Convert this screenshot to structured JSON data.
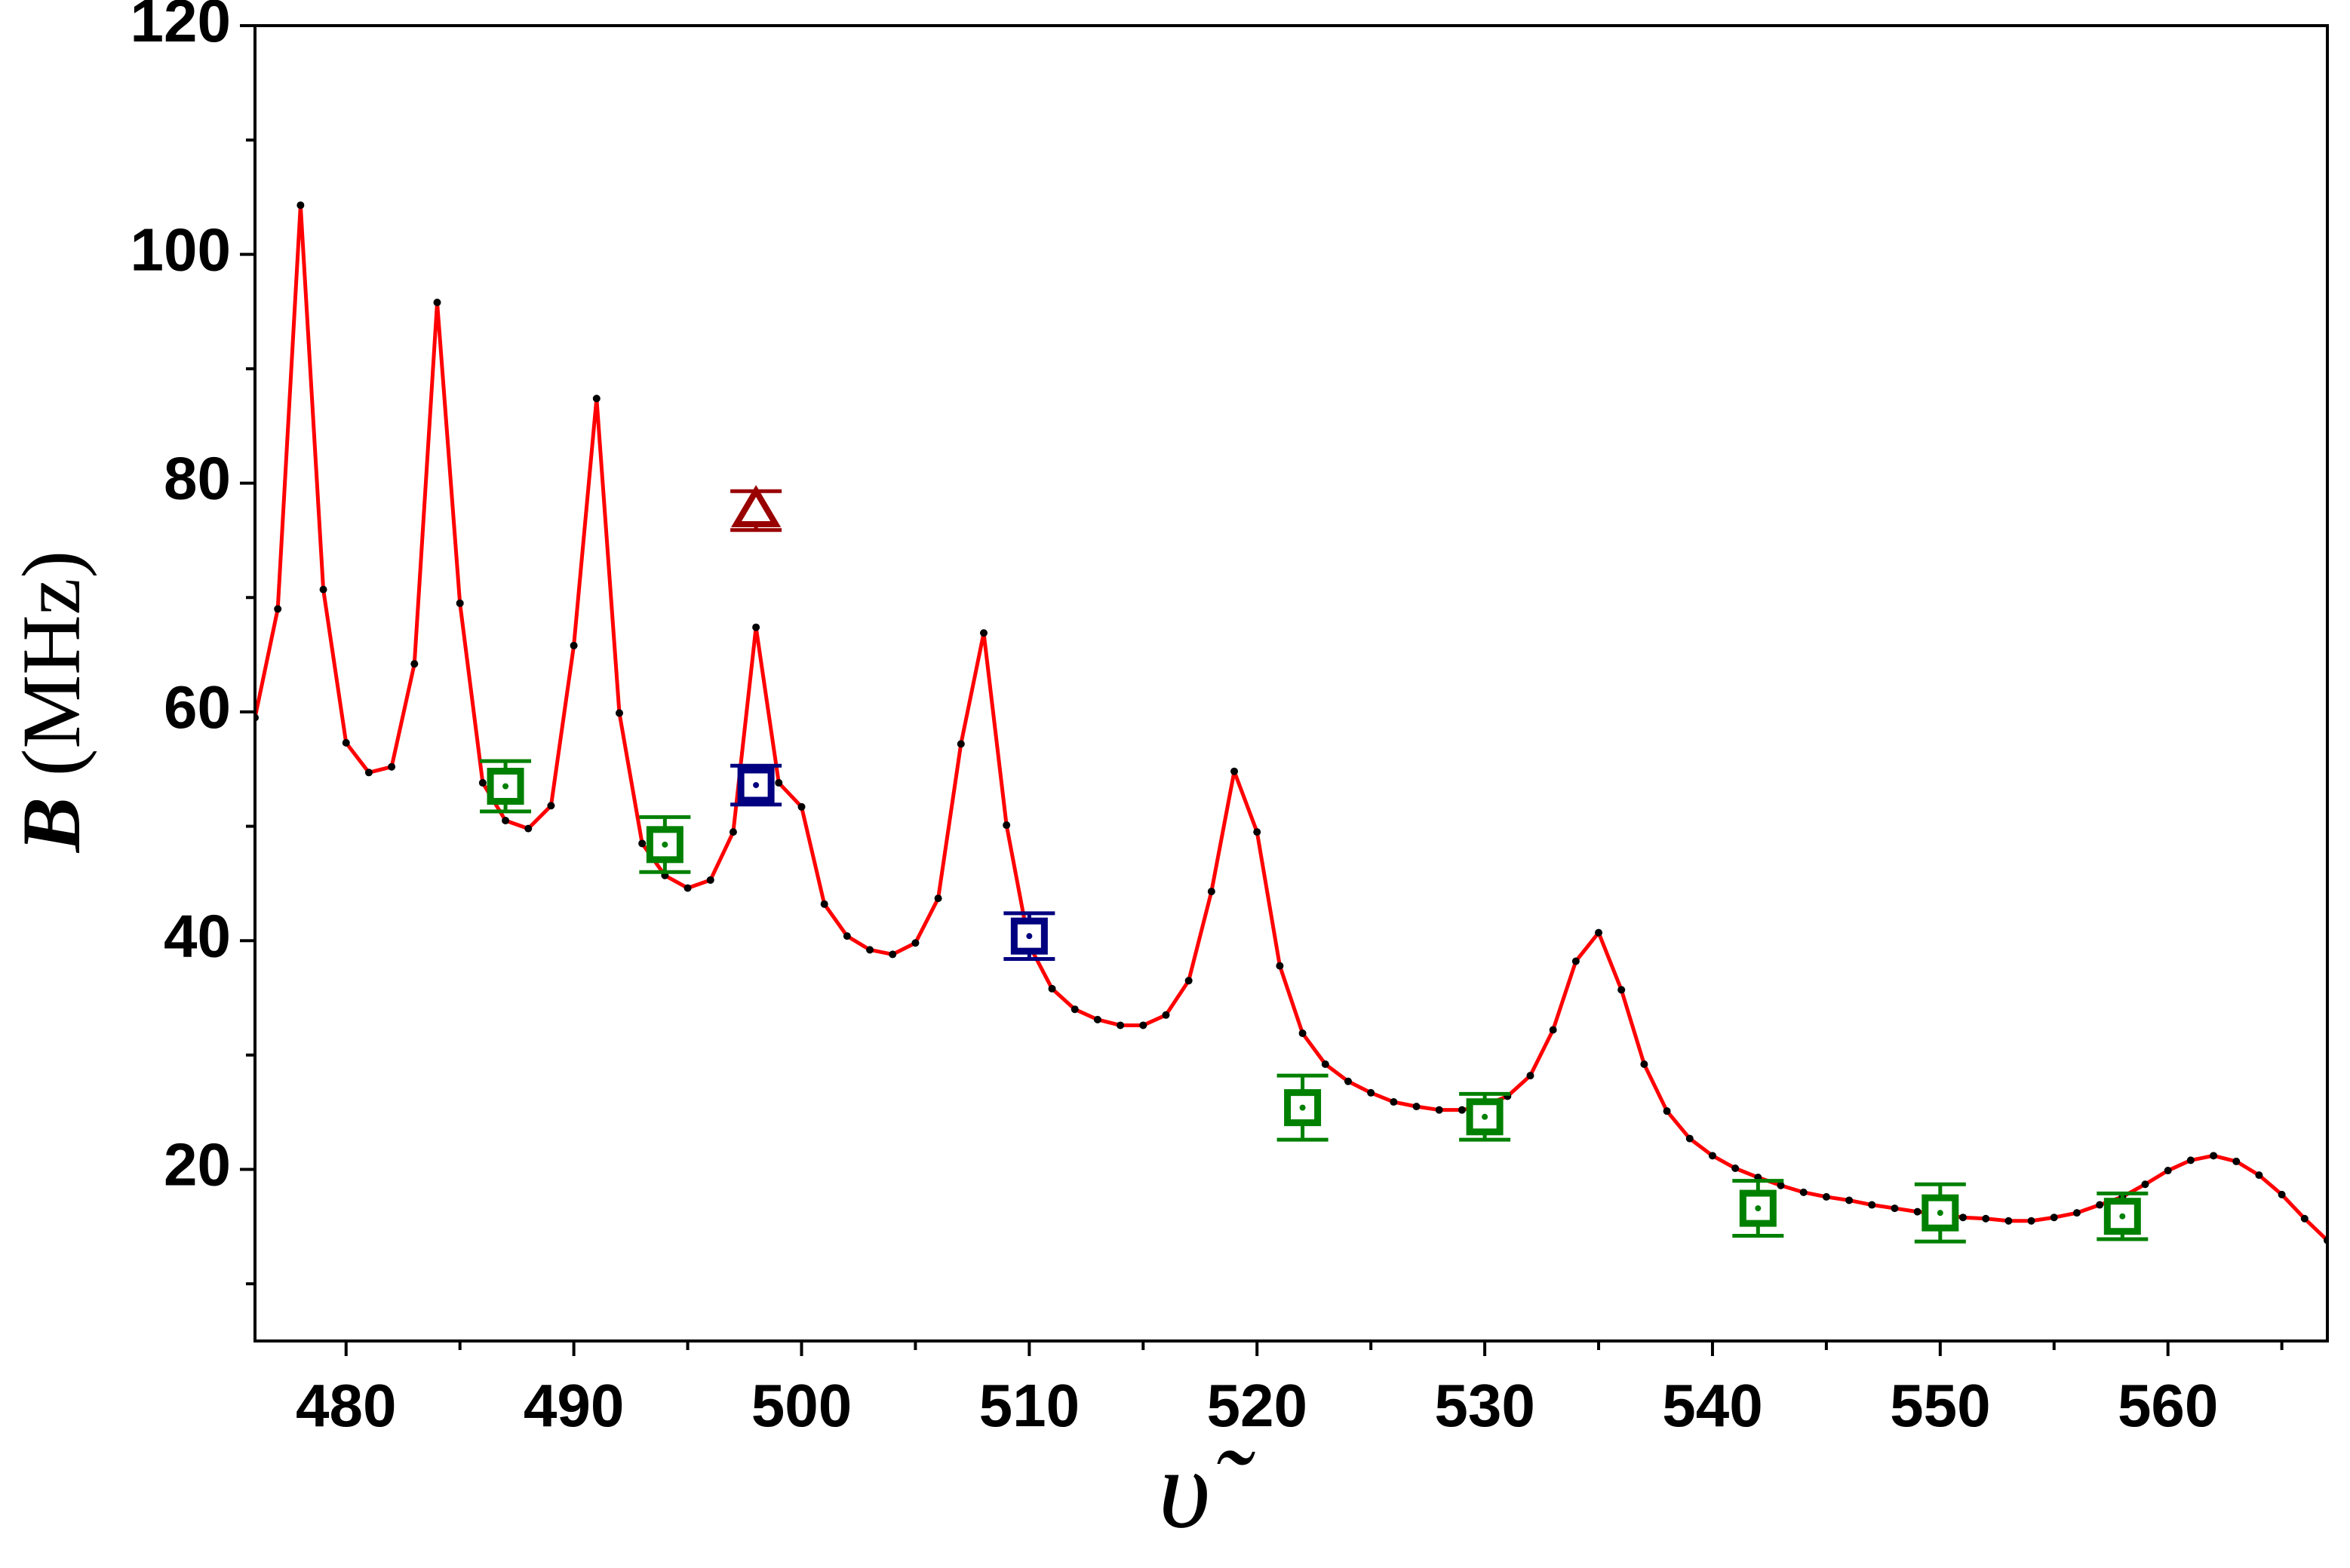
{
  "chart_data": {
    "type": "line",
    "x_label": "υ̃",
    "y_label_symbol": "B",
    "y_label_unit": "(MHz)",
    "xlim": [
      476,
      567
    ],
    "ylim": [
      5,
      120
    ],
    "xticks": [
      480,
      490,
      500,
      510,
      520,
      530,
      540,
      550,
      560
    ],
    "xminor": [
      485,
      495,
      505,
      515,
      525,
      535,
      545,
      555,
      565
    ],
    "yticks": [
      20,
      40,
      60,
      80,
      100,
      120
    ],
    "yminor": [
      10,
      30,
      50,
      70,
      90,
      110
    ],
    "series": [
      {
        "type": "line",
        "color": "#ff0000",
        "marker_color": "#000000",
        "x": [
          476,
          477,
          478,
          479,
          480,
          481,
          482,
          483,
          484,
          485,
          486,
          487,
          488,
          489,
          490,
          491,
          492,
          493,
          494,
          495,
          496,
          497,
          498,
          499,
          500,
          501,
          502,
          503,
          504,
          505,
          506,
          507,
          508,
          509,
          510,
          511,
          512,
          513,
          514,
          515,
          516,
          517,
          518,
          519,
          520,
          521,
          522,
          523,
          524,
          525,
          526,
          527,
          528,
          529,
          530,
          531,
          532,
          533,
          534,
          535,
          536,
          537,
          538,
          539,
          540,
          541,
          542,
          543,
          544,
          545,
          546,
          547,
          548,
          549,
          550,
          551,
          552,
          553,
          554,
          555,
          556,
          557,
          558,
          559,
          560,
          561,
          562,
          563,
          564,
          565,
          566,
          567
        ],
        "values": [
          59.5,
          69,
          104.3,
          70.7,
          57.3,
          54.7,
          55.2,
          64.2,
          95.8,
          69.5,
          53.8,
          50.5,
          49.8,
          51.8,
          65.8,
          87.4,
          59.9,
          48.5,
          45.7,
          44.6,
          45.3,
          49.5,
          67.4,
          53.8,
          51.7,
          43.2,
          40.4,
          39.2,
          38.8,
          39.8,
          43.7,
          57.2,
          66.9,
          50.1,
          39.6,
          35.8,
          34.0,
          33.1,
          32.6,
          32.6,
          33.5,
          36.5,
          44.3,
          54.8,
          49.5,
          37.8,
          31.9,
          29.2,
          27.7,
          26.7,
          25.9,
          25.5,
          25.2,
          25.2,
          25.6,
          26.4,
          28.2,
          32.2,
          38.2,
          40.7,
          35.7,
          29.2,
          25.1,
          22.7,
          21.2,
          20.1,
          19.3,
          18.6,
          18.0,
          17.6,
          17.3,
          16.9,
          16.6,
          16.3,
          16.1,
          15.8,
          15.7,
          15.5,
          15.5,
          15.8,
          16.2,
          16.9,
          17.6,
          18.7,
          19.9,
          20.8,
          21.2,
          20.7,
          19.5,
          17.8,
          15.7,
          13.8
        ]
      },
      {
        "type": "errorbar",
        "marker": "square",
        "color": "#008000",
        "x": [
          487,
          494,
          522,
          530,
          542,
          550,
          558
        ],
        "values": [
          53.5,
          48.4,
          25.4,
          24.6,
          16.6,
          16.2,
          15.9
        ],
        "errors": [
          2.2,
          2.4,
          2.8,
          2.0,
          2.4,
          2.5,
          2.0
        ]
      },
      {
        "type": "errorbar",
        "marker": "square",
        "color": "#000080",
        "x": [
          498,
          510
        ],
        "values": [
          53.6,
          40.4
        ],
        "errors": [
          1.7,
          2.0
        ]
      },
      {
        "type": "errorbar",
        "marker": "triangle",
        "color": "#990000",
        "x": [
          498
        ],
        "values": [
          77.6
        ],
        "errors": [
          1.7
        ]
      }
    ]
  }
}
